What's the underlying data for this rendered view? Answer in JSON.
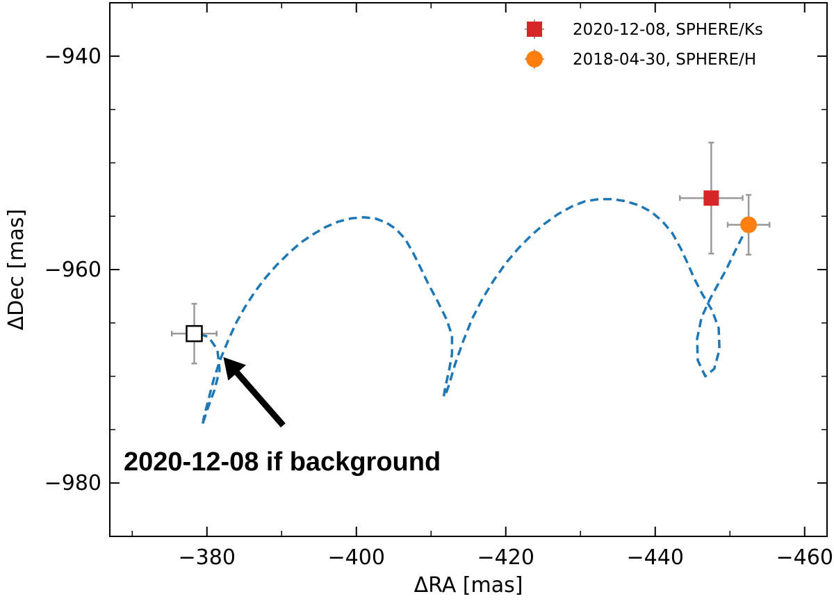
{
  "chart_data": {
    "type": "scatter",
    "xlabel": "ΔRA [mas]",
    "ylabel": "ΔDec [mas]",
    "xlim": [
      -367,
      -463
    ],
    "ylim": [
      -985,
      -935
    ],
    "x_inverted": true,
    "x_ticks": [
      -380,
      -400,
      -420,
      -440,
      -460
    ],
    "y_ticks": [
      -940,
      -960,
      -980
    ],
    "x_tick_labels": [
      "−380",
      "−400",
      "−420",
      "−440",
      "−460"
    ],
    "y_tick_labels": [
      "−940",
      "−960",
      "−980"
    ],
    "grid": false,
    "legend_position": "top-right",
    "series": [
      {
        "name": "2020-12-08, SPHERE/Ks",
        "marker": "square",
        "color": "#d62728",
        "x": -447.5,
        "y": -953.3,
        "xerr": 4.2,
        "yerr": 5.2
      },
      {
        "name": "2018-04-30, SPHERE/H",
        "marker": "circle",
        "color": "#ff7f0e",
        "x": -452.5,
        "y": -955.8,
        "xerr": 2.8,
        "yerr": 2.8
      }
    ],
    "background_point": {
      "x": -378.3,
      "y": -966.0,
      "xerr": 3.0,
      "yerr": 2.8,
      "marker": "open-square",
      "color": "#000000"
    },
    "track": {
      "style": "dashed",
      "color": "#1f77b4",
      "x": [
        -452.5,
        -451.6,
        -450.6,
        -449.5,
        -448.4,
        -447.3,
        -446.2,
        -445.6,
        -445.7,
        -446.7,
        -447.9,
        -448.6,
        -448.5,
        -447.6,
        -446.3,
        -445.2,
        -444.4,
        -443.4,
        -442.3,
        -441.0,
        -439.5,
        -437.9,
        -436.1,
        -434.3,
        -432.5,
        -430.6,
        -428.8,
        -427.0,
        -425.2,
        -423.4,
        -421.7,
        -420.0,
        -418.4,
        -416.9,
        -415.5,
        -414.3,
        -413.2,
        -412.4,
        -411.9,
        -411.7,
        -411.9,
        -412.4,
        -412.8,
        -412.8,
        -412.1,
        -410.9,
        -409.6,
        -408.5,
        -407.5,
        -406.5,
        -405.3,
        -404.0,
        -402.5,
        -401.0,
        -399.3,
        -397.6,
        -395.9,
        -394.2,
        -392.5,
        -390.9,
        -389.3,
        -387.8,
        -386.4,
        -385.1,
        -383.9,
        -382.8,
        -381.8,
        -380.9,
        -380.2,
        -379.6,
        -379.4,
        -379.5,
        -380.0,
        -381.0,
        -381.7,
        -381.4,
        -380.2,
        -378.8,
        -378.3
      ],
      "y": [
        -955.8,
        -957.0,
        -958.4,
        -960.0,
        -961.4,
        -962.8,
        -964.5,
        -966.5,
        -968.5,
        -970.0,
        -969.3,
        -967.5,
        -965.5,
        -963.8,
        -962.3,
        -960.8,
        -959.5,
        -958.0,
        -956.6,
        -955.5,
        -954.6,
        -954.0,
        -953.6,
        -953.4,
        -953.4,
        -953.6,
        -954.1,
        -954.8,
        -955.7,
        -956.8,
        -958.0,
        -959.4,
        -961.0,
        -962.7,
        -964.6,
        -966.7,
        -968.9,
        -970.8,
        -971.8,
        -971.9,
        -971.0,
        -969.5,
        -967.9,
        -966.2,
        -964.7,
        -963.0,
        -961.3,
        -959.7,
        -958.3,
        -957.1,
        -956.2,
        -955.6,
        -955.2,
        -955.1,
        -955.2,
        -955.5,
        -956.0,
        -956.7,
        -957.5,
        -958.5,
        -959.6,
        -960.8,
        -962.1,
        -963.5,
        -965.0,
        -966.7,
        -968.4,
        -970.3,
        -972.2,
        -973.8,
        -974.6,
        -974.3,
        -973.2,
        -971.3,
        -969.4,
        -967.5,
        -966.3,
        -966.0,
        -966.0
      ]
    },
    "annotations": [
      {
        "text": "2020-12-08 if background",
        "arrow_from": [
          -390.2,
          -974.6
        ],
        "arrow_to": [
          -382.2,
          -968.2
        ]
      }
    ]
  }
}
